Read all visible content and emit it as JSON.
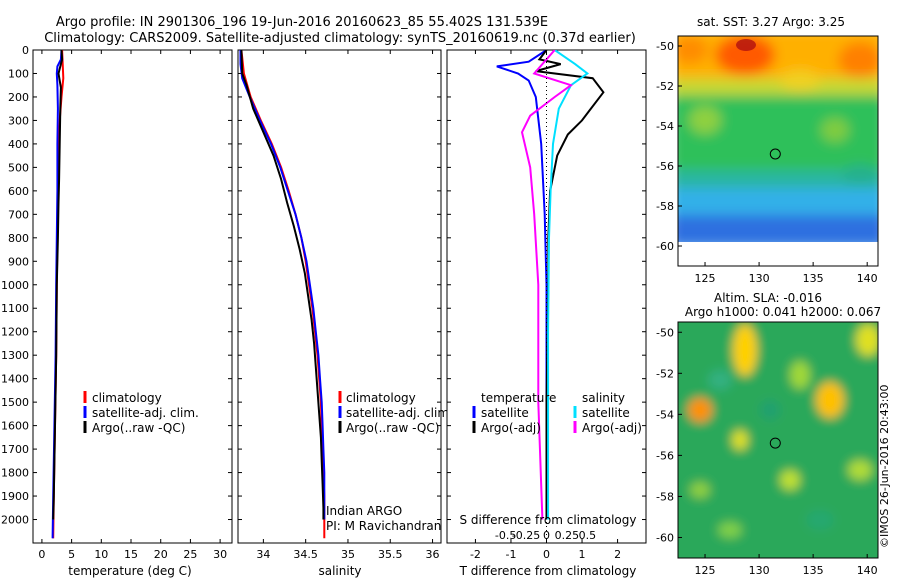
{
  "header": {
    "line1": "Argo profile: IN 2901306_196 19-Jun-2016 20160623_85 55.402S 131.539E",
    "line2": "Climatology: CARS2009. Satellite-adjusted climatology: synTS_20160619.nc (0.37d earlier)"
  },
  "footer": {
    "timestamp": "©IMOS 26-Jun-2016 20:43:00"
  },
  "colors": {
    "climatology": "#ff0000",
    "satellite": "#0000ff",
    "argo": "#000000",
    "satellite_salinity": "#00e0ff",
    "argo_salinity": "#ff00ff"
  },
  "chart_data": [
    {
      "id": "temperature",
      "type": "line",
      "xlabel": "temperature (deg C)",
      "ylabel": "",
      "xlim": [
        -1.5,
        32
      ],
      "ylim": [
        2100,
        0
      ],
      "xticks": [
        "0",
        "5",
        "10",
        "15",
        "20",
        "25",
        "30"
      ],
      "xtick_values": [
        0,
        5,
        10,
        15,
        20,
        25,
        30
      ],
      "yticks": [
        "0",
        "100",
        "200",
        "300",
        "400",
        "500",
        "600",
        "700",
        "800",
        "900",
        "1000",
        "1100",
        "1200",
        "1300",
        "1400",
        "1500",
        "1600",
        "1700",
        "1800",
        "1900",
        "2000"
      ],
      "ytick_values": [
        0,
        100,
        200,
        300,
        400,
        500,
        600,
        700,
        800,
        900,
        1000,
        1100,
        1200,
        1300,
        1400,
        1500,
        1600,
        1700,
        1800,
        1900,
        2000
      ],
      "legend": [
        "climatology",
        "satellite-adj. clim.",
        "Argo(..raw -QC)"
      ],
      "series": [
        {
          "name": "climatology",
          "color": "#ff0000",
          "points": [
            [
              3.4,
              0
            ],
            [
              3.5,
              60
            ],
            [
              3.6,
              120
            ],
            [
              3.3,
              200
            ],
            [
              3.0,
              300
            ],
            [
              2.8,
              450
            ],
            [
              2.7,
              600
            ],
            [
              2.6,
              800
            ],
            [
              2.5,
              1000
            ],
            [
              2.4,
              1300
            ],
            [
              2.2,
              1600
            ],
            [
              2.0,
              1900
            ],
            [
              1.9,
              2080
            ]
          ]
        },
        {
          "name": "satellite-adj. clim.",
          "color": "#0000ff",
          "points": [
            [
              3.3,
              0
            ],
            [
              3.2,
              40
            ],
            [
              2.6,
              70
            ],
            [
              2.5,
              100
            ],
            [
              2.6,
              150
            ],
            [
              2.7,
              250
            ],
            [
              2.6,
              400
            ],
            [
              2.6,
              600
            ],
            [
              2.5,
              800
            ],
            [
              2.4,
              1000
            ],
            [
              2.3,
              1300
            ],
            [
              2.1,
              1600
            ],
            [
              1.9,
              1900
            ],
            [
              1.8,
              2080
            ]
          ]
        },
        {
          "name": "Argo(..raw -QC)",
          "color": "#000000",
          "points": [
            [
              3.3,
              0
            ],
            [
              3.4,
              40
            ],
            [
              2.8,
              100
            ],
            [
              3.2,
              160
            ],
            [
              3.1,
              250
            ],
            [
              3.0,
              400
            ],
            [
              2.9,
              550
            ],
            [
              2.8,
              650
            ],
            [
              2.7,
              800
            ],
            [
              2.5,
              1000
            ],
            [
              2.4,
              1300
            ],
            [
              2.2,
              1600
            ],
            [
              2.0,
              1900
            ],
            [
              1.9,
              2000
            ]
          ]
        }
      ]
    },
    {
      "id": "salinity",
      "type": "line",
      "xlabel": "salinity",
      "ylabel": "",
      "xlim": [
        33.7,
        36.1
      ],
      "ylim": [
        2100,
        0
      ],
      "xticks": [
        "34",
        "34.5",
        "35",
        "35.5",
        "36"
      ],
      "xtick_values": [
        34,
        34.5,
        35,
        35.5,
        36
      ],
      "legend": [
        "climatology",
        "satellite-adj. clim.",
        "Argo(..raw -QC)"
      ],
      "annotation": [
        "Indian ARGO",
        "PI: M Ravichandran"
      ],
      "series": [
        {
          "name": "climatology",
          "color": "#ff0000",
          "points": [
            [
              33.74,
              0
            ],
            [
              33.77,
              100
            ],
            [
              33.85,
              200
            ],
            [
              33.97,
              300
            ],
            [
              34.1,
              400
            ],
            [
              34.21,
              500
            ],
            [
              34.3,
              600
            ],
            [
              34.38,
              700
            ],
            [
              34.45,
              800
            ],
            [
              34.5,
              900
            ],
            [
              34.54,
              1000
            ],
            [
              34.58,
              1100
            ],
            [
              34.61,
              1200
            ],
            [
              34.64,
              1300
            ],
            [
              34.66,
              1400
            ],
            [
              34.68,
              1500
            ],
            [
              34.69,
              1600
            ],
            [
              34.7,
              1700
            ],
            [
              34.71,
              1800
            ],
            [
              34.72,
              1900
            ],
            [
              34.72,
              2080
            ]
          ]
        },
        {
          "name": "satellite-adj. clim.",
          "color": "#0000ff",
          "points": [
            [
              33.73,
              0
            ],
            [
              33.73,
              60
            ],
            [
              33.75,
              120
            ],
            [
              33.84,
              200
            ],
            [
              33.96,
              300
            ],
            [
              34.09,
              400
            ],
            [
              34.2,
              500
            ],
            [
              34.29,
              600
            ],
            [
              34.38,
              700
            ],
            [
              34.45,
              800
            ],
            [
              34.51,
              900
            ],
            [
              34.55,
              1000
            ],
            [
              34.59,
              1100
            ],
            [
              34.62,
              1200
            ],
            [
              34.65,
              1300
            ],
            [
              34.67,
              1400
            ],
            [
              34.69,
              1500
            ],
            [
              34.7,
              1600
            ],
            [
              34.71,
              1700
            ],
            [
              34.72,
              1800
            ],
            [
              34.72,
              1900
            ],
            [
              34.72,
              2000
            ]
          ]
        },
        {
          "name": "Argo(..raw -QC)",
          "color": "#000000",
          "points": [
            [
              33.74,
              0
            ],
            [
              33.75,
              100
            ],
            [
              33.8,
              150
            ],
            [
              33.88,
              250
            ],
            [
              34.0,
              350
            ],
            [
              34.12,
              450
            ],
            [
              34.21,
              550
            ],
            [
              34.28,
              650
            ],
            [
              34.36,
              750
            ],
            [
              34.43,
              850
            ],
            [
              34.49,
              950
            ],
            [
              34.53,
              1050
            ],
            [
              34.57,
              1150
            ],
            [
              34.6,
              1250
            ],
            [
              34.62,
              1350
            ],
            [
              34.64,
              1450
            ],
            [
              34.66,
              1550
            ],
            [
              34.68,
              1650
            ],
            [
              34.69,
              1750
            ],
            [
              34.7,
              1850
            ],
            [
              34.71,
              1950
            ],
            [
              34.71,
              2000
            ]
          ]
        }
      ]
    },
    {
      "id": "difference",
      "type": "line",
      "xlabel": "T difference from climatology",
      "xlabel_top": "S difference from climatology",
      "xlim": [
        -2.8,
        2.8
      ],
      "ylim": [
        2100,
        0
      ],
      "xticks_T": [
        "-2",
        "-1",
        "0",
        "1",
        "2"
      ],
      "xtick_values_T": [
        -2,
        -1,
        0,
        1,
        2
      ],
      "xticks_S": [
        "-0.5",
        "-0.25",
        "0",
        "0.25",
        "0.5"
      ],
      "xtick_values_S": [
        -0.5,
        -0.25,
        0,
        0.25,
        0.5
      ],
      "legend_title_left": "temperature",
      "legend_title_right": "salinity",
      "legend_left": [
        "satellite",
        "Argo(-adj)"
      ],
      "legend_right": [
        "satellite",
        "Argo(-adj)"
      ],
      "series": [
        {
          "name": "T satellite",
          "color": "#0000ff",
          "points": [
            [
              0,
              0
            ],
            [
              -0.5,
              50
            ],
            [
              -1.4,
              70
            ],
            [
              -0.8,
              100
            ],
            [
              -0.5,
              130
            ],
            [
              -0.3,
              200
            ],
            [
              -0.15,
              400
            ],
            [
              -0.05,
              700
            ],
            [
              0,
              1000
            ],
            [
              0,
              1500
            ],
            [
              0,
              2000
            ]
          ]
        },
        {
          "name": "T Argo(-adj)",
          "color": "#000000",
          "points": [
            [
              0,
              0
            ],
            [
              -0.2,
              40
            ],
            [
              0.4,
              60
            ],
            [
              -0.3,
              90
            ],
            [
              1.3,
              120
            ],
            [
              1.6,
              180
            ],
            [
              1.2,
              260
            ],
            [
              1.0,
              300
            ],
            [
              0.6,
              360
            ],
            [
              0.3,
              450
            ],
            [
              0.1,
              600
            ],
            [
              0.05,
              800
            ],
            [
              0.05,
              1000
            ],
            [
              0.0,
              1500
            ],
            [
              0.0,
              2000
            ]
          ]
        },
        {
          "name": "S satellite",
          "color": "#00e0ff",
          "points": [
            [
              0.1,
              0
            ],
            [
              0.35,
              60
            ],
            [
              0.5,
              100
            ],
            [
              0.3,
              150
            ],
            [
              0.15,
              250
            ],
            [
              0.08,
              400
            ],
            [
              0.05,
              600
            ],
            [
              0.03,
              800
            ],
            [
              0.02,
              1200
            ],
            [
              0.02,
              2000
            ]
          ]
        },
        {
          "name": "S Argo(-adj)",
          "color": "#ff00ff",
          "points": [
            [
              0.1,
              0
            ],
            [
              -0.15,
              100
            ],
            [
              0.3,
              150
            ],
            [
              0.1,
              200
            ],
            [
              -0.2,
              280
            ],
            [
              -0.3,
              350
            ],
            [
              -0.2,
              500
            ],
            [
              -0.15,
              700
            ],
            [
              -0.1,
              1000
            ],
            [
              -0.1,
              1500
            ],
            [
              -0.05,
              2000
            ]
          ]
        }
      ]
    },
    {
      "id": "sst_map",
      "type": "heatmap",
      "title": "sat. SST: 3.27 Argo: 3.25",
      "xlim": [
        122.5,
        141
      ],
      "ylim": [
        -61,
        -49.5
      ],
      "xticks": [
        "125",
        "130",
        "135",
        "140"
      ],
      "xtick_values": [
        125,
        130,
        135,
        140
      ],
      "yticks": [
        "-50",
        "-52",
        "-54",
        "-56",
        "-58",
        "-60"
      ],
      "ytick_values": [
        -50,
        -52,
        -54,
        -56,
        -58,
        -60
      ],
      "marker": {
        "lon": 131.5,
        "lat": -55.4
      }
    },
    {
      "id": "sla_map",
      "type": "heatmap",
      "title_line1": "Altim. SLA: -0.016",
      "title_line2": "Argo h1000: 0.041 h2000: 0.067",
      "xlim": [
        122.5,
        141
      ],
      "ylim": [
        -61,
        -49.5
      ],
      "xticks": [
        "125",
        "130",
        "135",
        "140"
      ],
      "xtick_values": [
        125,
        130,
        135,
        140
      ],
      "yticks": [
        "-50",
        "-52",
        "-54",
        "-56",
        "-58",
        "-60"
      ],
      "ytick_values": [
        -50,
        -52,
        -54,
        -56,
        -58,
        -60
      ],
      "marker": {
        "lon": 131.5,
        "lat": -55.4
      }
    }
  ]
}
